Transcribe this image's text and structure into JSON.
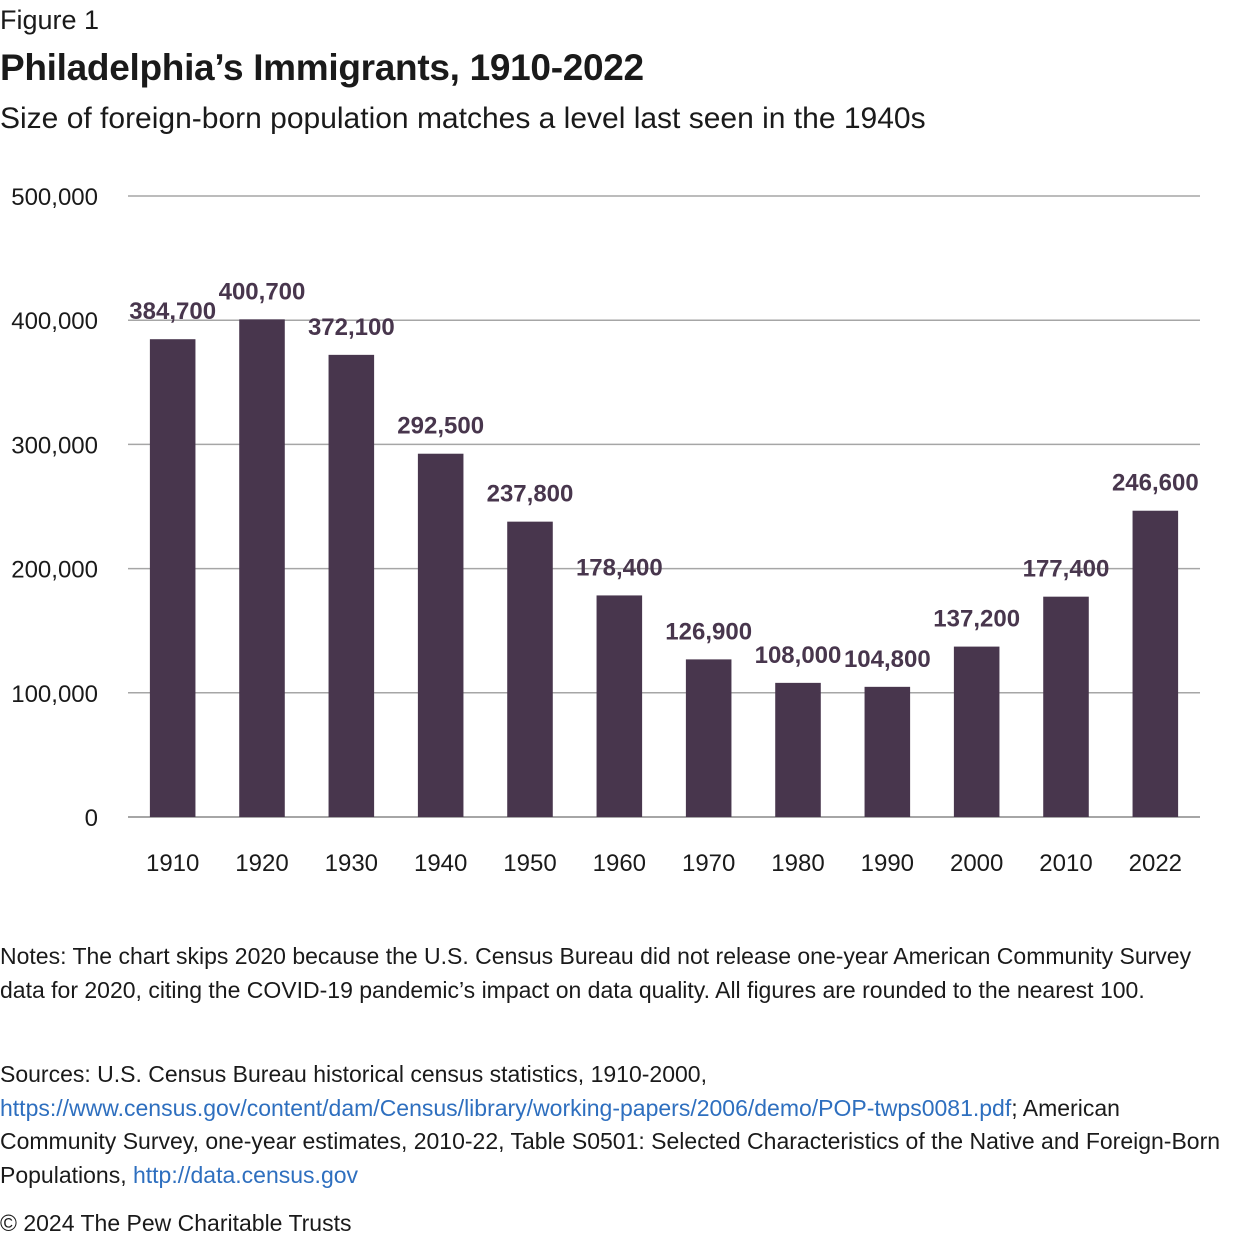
{
  "header": {
    "figure_label": "Figure 1",
    "title": "Philadelphia’s Immigrants, 1910-2022",
    "subtitle": "Size of foreign-born population matches a level last seen in the 1940s"
  },
  "chart_data": {
    "type": "bar",
    "title": "Philadelphia’s Immigrants, 1910-2022",
    "subtitle": "Size of foreign-born population matches a level last seen in the 1940s",
    "xlabel": "",
    "ylabel": "",
    "categories": [
      "1910",
      "1920",
      "1930",
      "1940",
      "1950",
      "1960",
      "1970",
      "1980",
      "1990",
      "2000",
      "2010",
      "2022"
    ],
    "values": [
      384700,
      400700,
      372100,
      292500,
      237800,
      178400,
      126900,
      108000,
      104800,
      137200,
      177400,
      246600
    ],
    "data_labels": [
      "384,700",
      "400,700",
      "372,100",
      "292,500",
      "237,800",
      "178,400",
      "126,900",
      "108,000",
      "104,800",
      "137,200",
      "177,400",
      "246,600"
    ],
    "ylim": [
      0,
      500000
    ],
    "yticks": [
      0,
      100000,
      200000,
      300000,
      400000,
      500000
    ],
    "ytick_labels": [
      "0",
      "100,000",
      "200,000",
      "300,000",
      "400,000",
      "500,000"
    ],
    "grid": true,
    "legend": "none",
    "colors": {
      "bar": "#48364d",
      "data_label": "#48364d",
      "gridline": "#a6a6a6",
      "axis_text": "#1a1a1a"
    }
  },
  "footer": {
    "notes": "Notes: The chart skips 2020 because the U.S. Census Bureau did not release one-year American Community Survey data for 2020, citing the COVID-19 pandemic’s impact on data quality. All figures are rounded to the nearest 100.",
    "sources_prefix": "Sources: U.S. Census Bureau historical census statistics, 1910-2000,",
    "sources_link1": "https://www.census.gov/content/dam/Census/library/working-papers/2006/demo/POP-twps0081.pdf",
    "sources_middle": "; American Community Survey, one-year estimates, 2010-22, Table S0501: Selected Characteristics of the Native and Foreign-Born Populations, ",
    "sources_link2": "http://data.census.gov",
    "copyright": "© 2024 The Pew Charitable Trusts",
    "link_color": "#2e6fbf"
  }
}
